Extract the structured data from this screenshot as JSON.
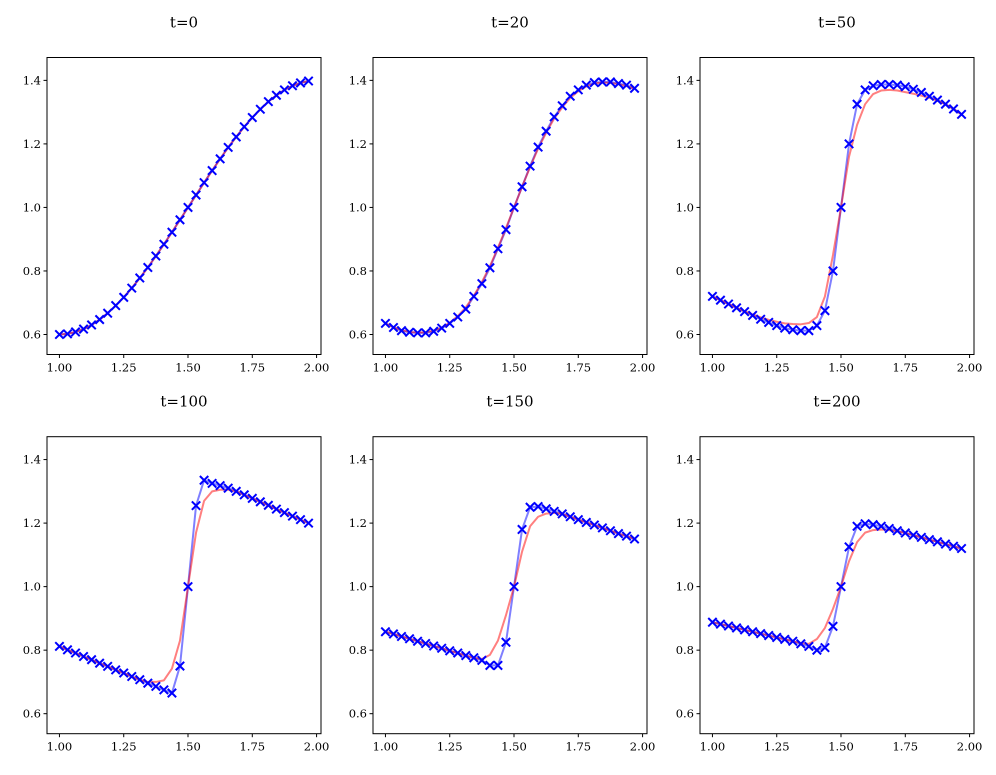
{
  "chart_data": {
    "type": "line",
    "layout": "2x3 subplots",
    "xlim": [
      0.9516,
      2.0172
    ],
    "ylim": [
      0.537,
      1.472
    ],
    "xticks": [
      1.0,
      1.25,
      1.5,
      1.75,
      2.0
    ],
    "xtick_labels": [
      "1.00",
      "1.25",
      "1.50",
      "1.75",
      "2.00"
    ],
    "yticks": [
      0.6,
      0.8,
      1.0,
      1.2,
      1.4
    ],
    "ytick_labels": [
      "0.6",
      "0.8",
      "1.0",
      "1.2",
      "1.4"
    ],
    "grid": false,
    "colors": {
      "markers": "#0000ff",
      "blue_line": "#0000ff",
      "red_line": "#ff0000"
    },
    "x": [
      1.0,
      1.03125,
      1.0625,
      1.09375,
      1.125,
      1.15625,
      1.1875,
      1.21875,
      1.25,
      1.28125,
      1.3125,
      1.34375,
      1.375,
      1.40625,
      1.4375,
      1.46875,
      1.5,
      1.53125,
      1.5625,
      1.59375,
      1.625,
      1.65625,
      1.6875,
      1.71875,
      1.75,
      1.78125,
      1.8125,
      1.84375,
      1.875,
      1.90625,
      1.9375,
      1.96875
    ],
    "panels": [
      {
        "title": "t=0",
        "blue": [
          0.6,
          0.602,
          0.608,
          0.617,
          0.63,
          0.647,
          0.667,
          0.691,
          0.717,
          0.746,
          0.778,
          0.811,
          0.847,
          0.884,
          0.922,
          0.961,
          1.0,
          1.039,
          1.078,
          1.116,
          1.153,
          1.189,
          1.222,
          1.254,
          1.283,
          1.309,
          1.333,
          1.353,
          1.37,
          1.383,
          1.392,
          1.398
        ],
        "red": [
          0.6,
          0.602,
          0.608,
          0.617,
          0.63,
          0.647,
          0.667,
          0.691,
          0.717,
          0.746,
          0.778,
          0.811,
          0.847,
          0.884,
          0.922,
          0.961,
          1.0,
          1.039,
          1.078,
          1.116,
          1.153,
          1.189,
          1.222,
          1.254,
          1.283,
          1.309,
          1.333,
          1.353,
          1.37,
          1.383,
          1.392,
          1.398
        ]
      },
      {
        "title": "t=20",
        "blue": [
          0.635,
          0.622,
          0.612,
          0.607,
          0.605,
          0.605,
          0.61,
          0.62,
          0.635,
          0.655,
          0.68,
          0.72,
          0.76,
          0.81,
          0.87,
          0.93,
          1.0,
          1.065,
          1.13,
          1.19,
          1.24,
          1.285,
          1.32,
          1.35,
          1.37,
          1.385,
          1.393,
          1.395,
          1.395,
          1.39,
          1.385,
          1.375
        ],
        "red": [
          0.635,
          0.623,
          0.614,
          0.608,
          0.606,
          0.607,
          0.612,
          0.622,
          0.637,
          0.658,
          0.685,
          0.722,
          0.765,
          0.815,
          0.873,
          0.935,
          1.0,
          1.065,
          1.127,
          1.185,
          1.235,
          1.28,
          1.315,
          1.345,
          1.366,
          1.381,
          1.39,
          1.393,
          1.392,
          1.388,
          1.382,
          1.373
        ]
      },
      {
        "title": "t=50",
        "blue": [
          0.72,
          0.708,
          0.696,
          0.684,
          0.672,
          0.66,
          0.648,
          0.638,
          0.628,
          0.62,
          0.615,
          0.612,
          0.612,
          0.628,
          0.675,
          0.8,
          1.0,
          1.2,
          1.325,
          1.37,
          1.383,
          1.387,
          1.387,
          1.385,
          1.38,
          1.372,
          1.362,
          1.35,
          1.338,
          1.325,
          1.31,
          1.293
        ],
        "red": [
          0.72,
          0.708,
          0.696,
          0.684,
          0.673,
          0.663,
          0.654,
          0.646,
          0.64,
          0.635,
          0.633,
          0.632,
          0.636,
          0.655,
          0.72,
          0.85,
          1.0,
          1.16,
          1.26,
          1.325,
          1.357,
          1.368,
          1.37,
          1.368,
          1.363,
          1.358,
          1.352,
          1.345,
          1.336,
          1.325,
          1.31,
          1.293
        ]
      },
      {
        "title": "t=100",
        "blue": [
          0.812,
          0.801,
          0.791,
          0.78,
          0.77,
          0.759,
          0.749,
          0.738,
          0.728,
          0.717,
          0.707,
          0.696,
          0.686,
          0.675,
          0.665,
          0.75,
          1.0,
          1.255,
          1.335,
          1.325,
          1.318,
          1.31,
          1.3,
          1.289,
          1.278,
          1.267,
          1.256,
          1.244,
          1.233,
          1.222,
          1.211,
          1.2
        ],
        "red": [
          0.812,
          0.801,
          0.791,
          0.78,
          0.77,
          0.759,
          0.749,
          0.738,
          0.728,
          0.717,
          0.707,
          0.7,
          0.7,
          0.705,
          0.742,
          0.83,
          1.0,
          1.17,
          1.27,
          1.3,
          1.305,
          1.305,
          1.3,
          1.289,
          1.278,
          1.267,
          1.256,
          1.244,
          1.233,
          1.222,
          1.211,
          1.2
        ]
      },
      {
        "title": "t=150",
        "blue": [
          0.858,
          0.851,
          0.843,
          0.836,
          0.828,
          0.821,
          0.813,
          0.806,
          0.798,
          0.791,
          0.783,
          0.776,
          0.768,
          0.752,
          0.752,
          0.825,
          1.0,
          1.18,
          1.25,
          1.252,
          1.245,
          1.237,
          1.229,
          1.22,
          1.211,
          1.202,
          1.194,
          1.185,
          1.176,
          1.167,
          1.159,
          1.15
        ],
        "red": [
          0.858,
          0.851,
          0.843,
          0.836,
          0.828,
          0.821,
          0.813,
          0.806,
          0.798,
          0.791,
          0.783,
          0.776,
          0.772,
          0.785,
          0.83,
          0.91,
          1.0,
          1.11,
          1.19,
          1.22,
          1.23,
          1.232,
          1.229,
          1.22,
          1.211,
          1.202,
          1.194,
          1.185,
          1.176,
          1.167,
          1.159,
          1.15
        ]
      },
      {
        "title": "t=200",
        "blue": [
          0.888,
          0.882,
          0.876,
          0.87,
          0.864,
          0.858,
          0.852,
          0.846,
          0.84,
          0.834,
          0.828,
          0.82,
          0.812,
          0.8,
          0.808,
          0.875,
          1.0,
          1.125,
          1.19,
          1.198,
          1.195,
          1.19,
          1.183,
          1.176,
          1.169,
          1.162,
          1.155,
          1.148,
          1.141,
          1.134,
          1.127,
          1.12
        ],
        "red": [
          0.888,
          0.882,
          0.876,
          0.87,
          0.864,
          0.858,
          0.852,
          0.846,
          0.84,
          0.834,
          0.828,
          0.822,
          0.82,
          0.835,
          0.87,
          0.93,
          1.0,
          1.08,
          1.14,
          1.17,
          1.178,
          1.18,
          1.178,
          1.174,
          1.169,
          1.162,
          1.155,
          1.148,
          1.141,
          1.134,
          1.127,
          1.12
        ]
      }
    ]
  }
}
